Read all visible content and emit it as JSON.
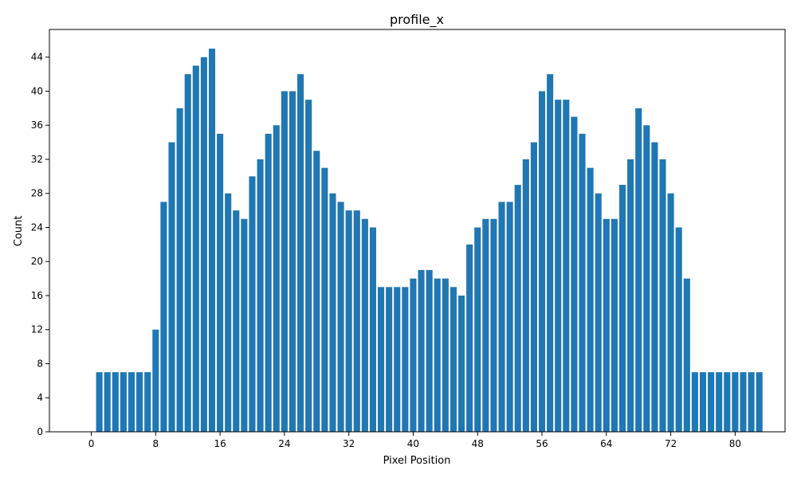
{
  "chart_data": {
    "type": "bar",
    "title": "profile_x",
    "xlabel": "Pixel Position",
    "ylabel": "Count",
    "x": [
      1,
      2,
      3,
      4,
      5,
      6,
      7,
      8,
      9,
      10,
      11,
      12,
      13,
      14,
      15,
      16,
      17,
      18,
      19,
      20,
      21,
      22,
      23,
      24,
      25,
      26,
      27,
      28,
      29,
      30,
      31,
      32,
      33,
      34,
      35,
      36,
      37,
      38,
      39,
      40,
      41,
      42,
      43,
      44,
      45,
      46,
      47,
      48,
      49,
      50,
      51,
      52,
      53,
      54,
      55,
      56,
      57,
      58,
      59,
      60,
      61,
      62,
      63,
      64,
      65,
      66,
      67,
      68,
      69,
      70,
      71,
      72,
      73,
      74,
      75,
      76,
      77,
      78,
      79,
      80,
      81,
      82,
      83
    ],
    "values": [
      7,
      7,
      7,
      7,
      7,
      7,
      7,
      12,
      27,
      34,
      38,
      42,
      43,
      44,
      45,
      35,
      28,
      26,
      25,
      30,
      32,
      35,
      36,
      40,
      40,
      42,
      39,
      33,
      31,
      28,
      27,
      26,
      26,
      25,
      24,
      17,
      17,
      17,
      17,
      18,
      19,
      19,
      18,
      18,
      17,
      16,
      22,
      24,
      25,
      25,
      27,
      27,
      29,
      32,
      34,
      40,
      42,
      39,
      39,
      37,
      35,
      31,
      28,
      25,
      25,
      29,
      32,
      38,
      36,
      34,
      32,
      28,
      24,
      18,
      7,
      7,
      7,
      7,
      7,
      7,
      7,
      7,
      7
    ],
    "xticks": [
      0,
      8,
      16,
      24,
      32,
      40,
      48,
      56,
      64,
      72,
      80
    ],
    "yticks": [
      0,
      4,
      8,
      12,
      16,
      20,
      24,
      28,
      32,
      36,
      40,
      44
    ],
    "xlim": [
      -5.2,
      86.2
    ],
    "ylim": [
      0,
      47.25
    ],
    "bar_color": "#1f77b4",
    "grid": false
  }
}
